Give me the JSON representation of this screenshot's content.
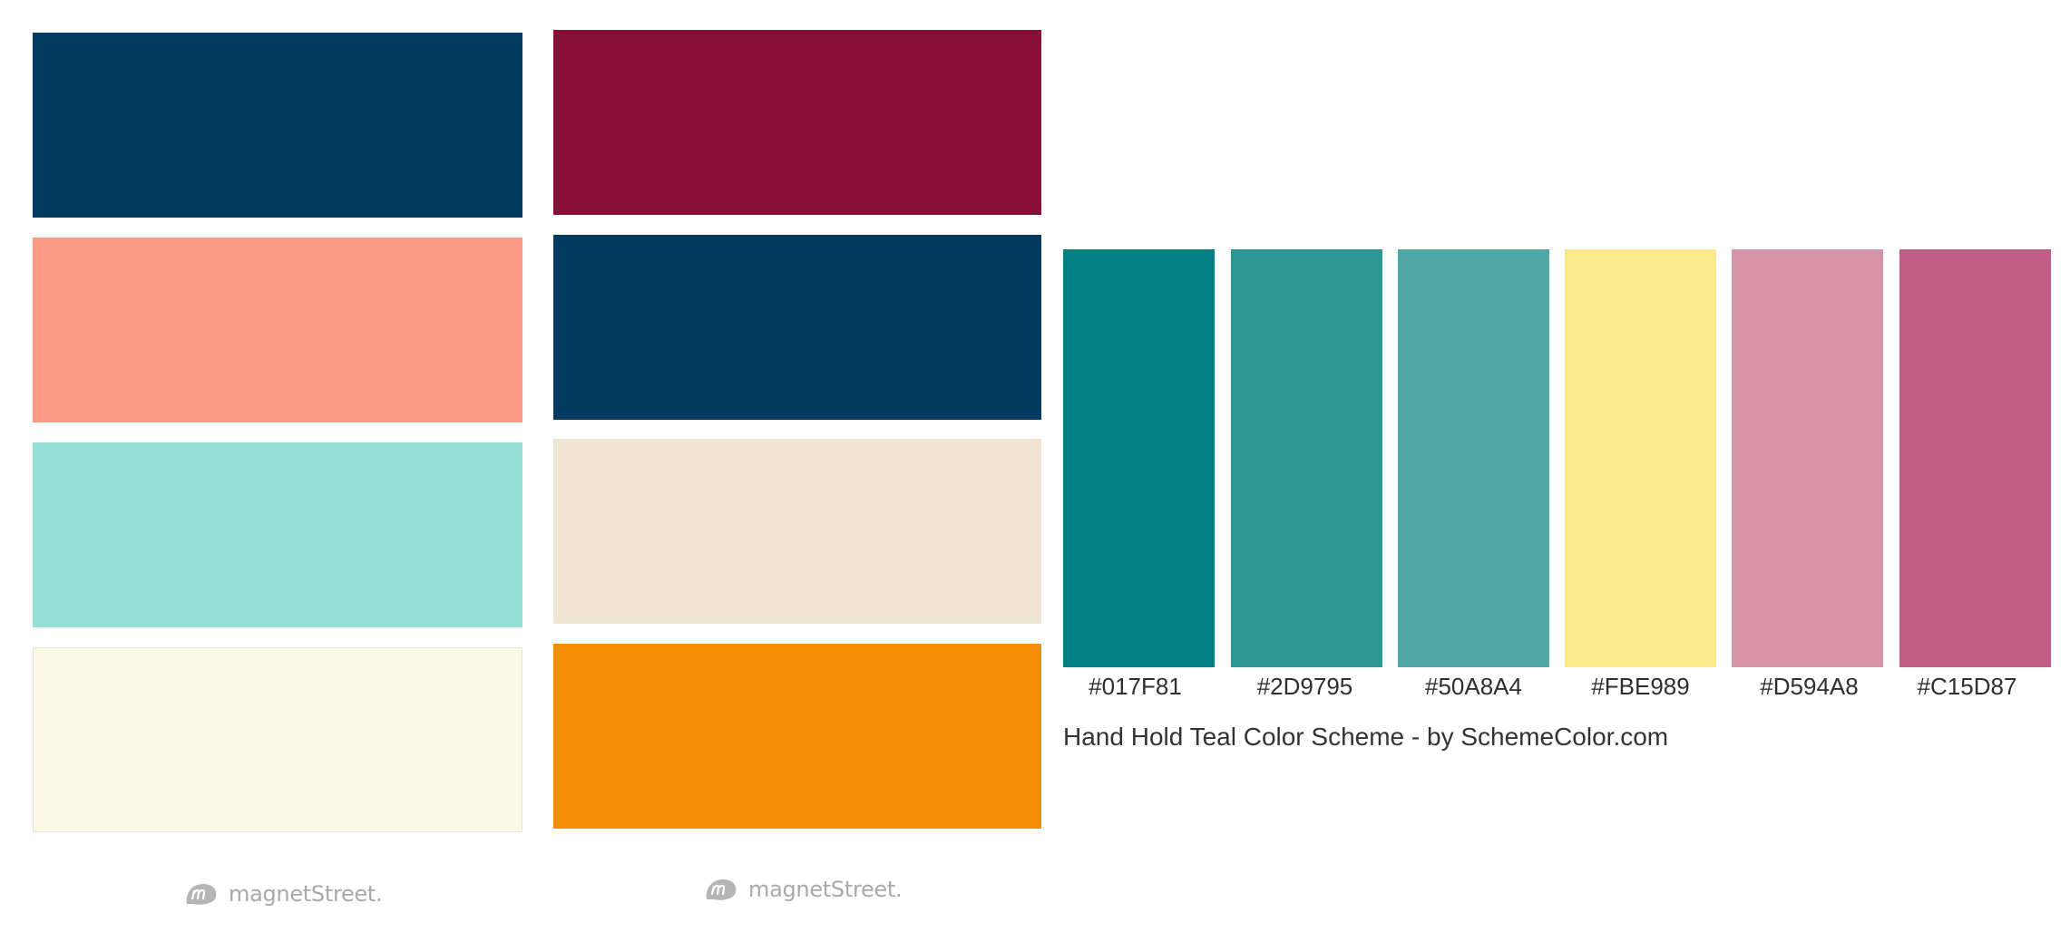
{
  "palette_left": {
    "swatches": [
      "#023A61",
      "#FE9B87",
      "#94DED6",
      "#FDF8E6"
    ],
    "brand": "magnetStreet."
  },
  "palette_middle": {
    "swatches": [
      "#890F38",
      "#023A61",
      "#F0E4D2",
      "#F48D02"
    ],
    "brand": "magnetStreet."
  },
  "scheme": {
    "colors": [
      {
        "hex": "#017F81",
        "color": "#017F81"
      },
      {
        "hex": "#2D9795",
        "color": "#2D9795"
      },
      {
        "hex": "#50A8A4",
        "color": "#50A8A4"
      },
      {
        "hex": "#FBE989",
        "color": "#FBE989"
      },
      {
        "hex": "#D594A8",
        "color": "#D594A8"
      },
      {
        "hex": "#C15D87",
        "color": "#C15D87"
      }
    ],
    "caption": "Hand Hold Teal Color Scheme - by SchemeColor.com"
  }
}
